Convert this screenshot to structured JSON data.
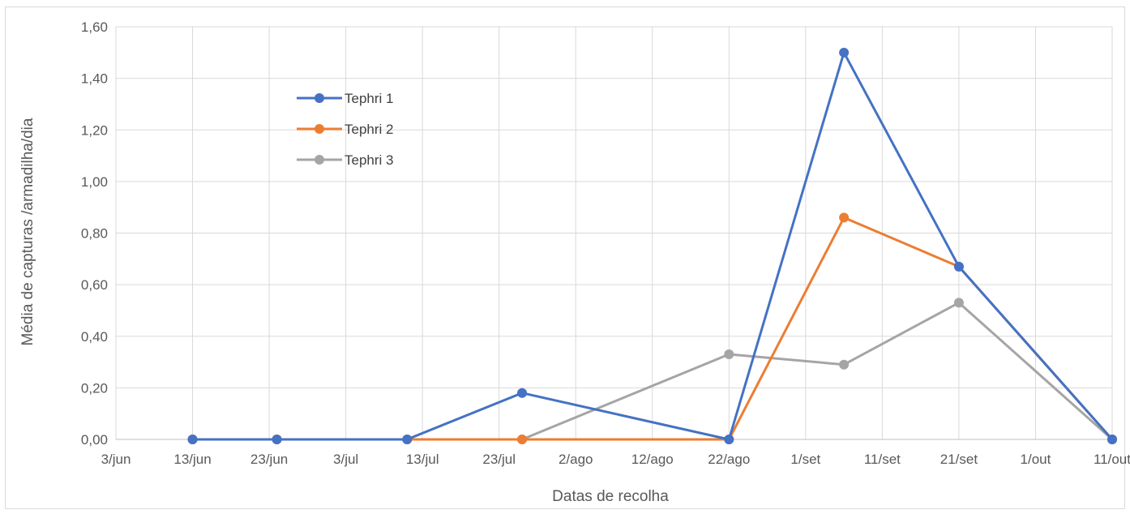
{
  "chart_data": {
    "type": "line",
    "title": "",
    "xlabel": "Datas de recolha",
    "ylabel": "Média de capturas /armadilha/dia",
    "x_ticks": [
      "3/jun",
      "13/jun",
      "23/jun",
      "3/jul",
      "13/jul",
      "23/jul",
      "2/ago",
      "12/ago",
      "22/ago",
      "1/set",
      "11/set",
      "21/set",
      "1/out",
      "11/out"
    ],
    "y_ticks": [
      "0,00",
      "0,20",
      "0,40",
      "0,60",
      "0,80",
      "1,00",
      "1,20",
      "1,40",
      "1,60"
    ],
    "ylim": [
      0,
      1.6
    ],
    "xlim": [
      "3/jun",
      "11/out"
    ],
    "grid": true,
    "legend_position": "upper-left-inside",
    "x": [
      "13/jun",
      "24/jun",
      "11/jul",
      "26/jul",
      "22/ago",
      "6/set",
      "21/set",
      "11/out"
    ],
    "series": [
      {
        "name": "Tephri 1",
        "color": "#4472C4",
        "values": [
          0,
          0,
          0,
          0.18,
          0,
          1.5,
          0.67,
          0
        ]
      },
      {
        "name": "Tephri 2",
        "color": "#ED7D31",
        "values": [
          0,
          0,
          0,
          0,
          0,
          0.86,
          0.67,
          0
        ]
      },
      {
        "name": "Tephri 3",
        "color": "#A5A5A5",
        "values": [
          0,
          0,
          0,
          0,
          0.33,
          0.29,
          0.53,
          0
        ]
      }
    ]
  }
}
